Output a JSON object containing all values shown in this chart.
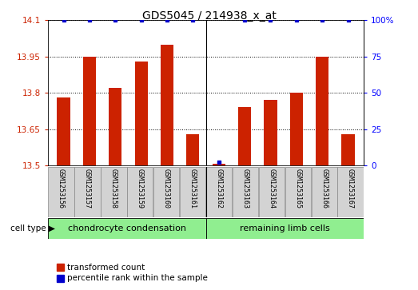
{
  "title": "GDS5045 / 214938_x_at",
  "samples": [
    "GSM1253156",
    "GSM1253157",
    "GSM1253158",
    "GSM1253159",
    "GSM1253160",
    "GSM1253161",
    "GSM1253162",
    "GSM1253163",
    "GSM1253164",
    "GSM1253165",
    "GSM1253166",
    "GSM1253167"
  ],
  "transformed_count": [
    13.78,
    13.95,
    13.82,
    13.93,
    14.0,
    13.63,
    13.505,
    13.74,
    13.77,
    13.8,
    13.95,
    13.63
  ],
  "percentile_rank": [
    100,
    100,
    100,
    100,
    100,
    100,
    2,
    100,
    100,
    100,
    100,
    100
  ],
  "ylim_left": [
    13.5,
    14.1
  ],
  "ylim_right": [
    0,
    100
  ],
  "yticks_left": [
    13.5,
    13.65,
    13.8,
    13.95,
    14.1
  ],
  "yticks_right": [
    0,
    25,
    50,
    75,
    100
  ],
  "ytick_labels_left": [
    "13.5",
    "13.65",
    "13.8",
    "13.95",
    "14.1"
  ],
  "ytick_labels_right": [
    "0",
    "25",
    "50",
    "75",
    "100%"
  ],
  "groups": [
    {
      "label": "chondrocyte condensation",
      "start": 0,
      "end": 5,
      "color": "#90EE90"
    },
    {
      "label": "remaining limb cells",
      "start": 6,
      "end": 11,
      "color": "#90EE90"
    }
  ],
  "bar_color": "#CC2200",
  "dot_color": "#0000CC",
  "cell_type_label": "cell type",
  "legend_bar_label": "transformed count",
  "legend_dot_label": "percentile rank within the sample",
  "bar_width": 0.5,
  "grid_color": "black",
  "divider_col": 5.5
}
